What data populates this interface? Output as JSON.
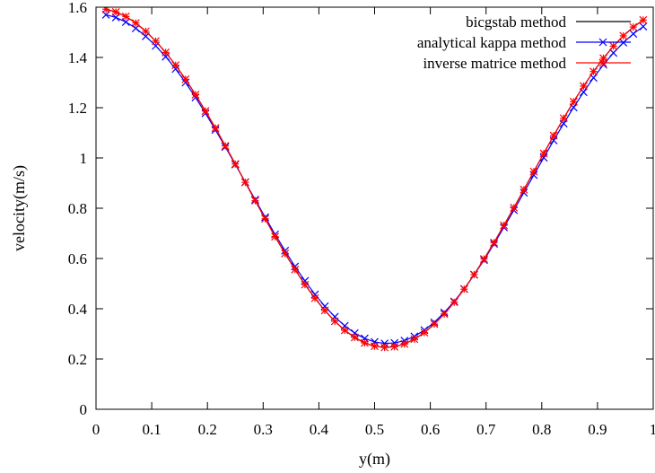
{
  "chart_data": {
    "type": "line",
    "title": "",
    "xlabel": "y(m)",
    "ylabel": "velocity(m/s)",
    "xlim": [
      0,
      1
    ],
    "ylim": [
      0,
      1.6
    ],
    "xticks": [
      "0",
      "0.1",
      "0.2",
      "0.3",
      "0.4",
      "0.5",
      "0.6",
      "0.7",
      "0.8",
      "0.9",
      "1"
    ],
    "yticks": [
      "0",
      "0.2",
      "0.4",
      "0.6",
      "0.8",
      "1",
      "1.2",
      "1.4",
      "1.6"
    ],
    "grid": false,
    "legend_position": "top-right",
    "x": [
      0.0179,
      0.0357,
      0.0536,
      0.0714,
      0.0893,
      0.1071,
      0.125,
      0.1429,
      0.1607,
      0.1786,
      0.1964,
      0.2143,
      0.2321,
      0.25,
      0.2679,
      0.2857,
      0.3036,
      0.3214,
      0.3393,
      0.3571,
      0.375,
      0.3929,
      0.4107,
      0.4286,
      0.4464,
      0.4643,
      0.4821,
      0.5,
      0.5179,
      0.5357,
      0.5536,
      0.5714,
      0.5893,
      0.6071,
      0.625,
      0.6429,
      0.6607,
      0.6786,
      0.6964,
      0.7143,
      0.7321,
      0.75,
      0.7679,
      0.7857,
      0.8036,
      0.8214,
      0.8393,
      0.8571,
      0.875,
      0.8929,
      0.9107,
      0.9286,
      0.9464,
      0.9643,
      0.9821
    ],
    "series": [
      {
        "name": "bicgstab method",
        "color": "#000000",
        "marker": "none",
        "values": [
          1.592,
          1.581,
          1.563,
          1.537,
          1.504,
          1.465,
          1.42,
          1.369,
          1.313,
          1.252,
          1.187,
          1.119,
          1.048,
          0.976,
          0.903,
          0.83,
          0.758,
          0.687,
          0.62,
          0.556,
          0.496,
          0.442,
          0.393,
          0.35,
          0.314,
          0.286,
          0.264,
          0.251,
          0.246,
          0.249,
          0.26,
          0.279,
          0.305,
          0.339,
          0.379,
          0.426,
          0.478,
          0.536,
          0.598,
          0.663,
          0.732,
          0.802,
          0.874,
          0.946,
          1.018,
          1.089,
          1.158,
          1.224,
          1.286,
          1.344,
          1.397,
          1.445,
          1.486,
          1.521,
          1.549
        ]
      },
      {
        "name": "analytical kappa method",
        "color": "#0000ff",
        "marker": "x",
        "values": [
          1.57,
          1.559,
          1.541,
          1.516,
          1.484,
          1.446,
          1.403,
          1.354,
          1.3,
          1.241,
          1.178,
          1.112,
          1.044,
          0.974,
          0.904,
          0.834,
          0.764,
          0.696,
          0.631,
          0.568,
          0.511,
          0.457,
          0.41,
          0.368,
          0.332,
          0.303,
          0.282,
          0.268,
          0.262,
          0.264,
          0.273,
          0.29,
          0.315,
          0.346,
          0.385,
          0.429,
          0.479,
          0.535,
          0.594,
          0.658,
          0.724,
          0.792,
          0.862,
          0.932,
          1.001,
          1.07,
          1.137,
          1.201,
          1.262,
          1.319,
          1.371,
          1.418,
          1.459,
          1.494,
          1.523
        ]
      },
      {
        "name": "inverse matrice method",
        "color": "#ff0000",
        "marker": "*",
        "values": [
          1.592,
          1.581,
          1.563,
          1.537,
          1.504,
          1.465,
          1.42,
          1.369,
          1.313,
          1.252,
          1.187,
          1.119,
          1.048,
          0.976,
          0.903,
          0.83,
          0.758,
          0.687,
          0.62,
          0.556,
          0.496,
          0.442,
          0.393,
          0.35,
          0.314,
          0.286,
          0.264,
          0.251,
          0.246,
          0.249,
          0.26,
          0.279,
          0.305,
          0.339,
          0.379,
          0.426,
          0.478,
          0.536,
          0.598,
          0.663,
          0.732,
          0.802,
          0.874,
          0.946,
          1.018,
          1.089,
          1.158,
          1.224,
          1.286,
          1.344,
          1.397,
          1.445,
          1.486,
          1.521,
          1.549
        ]
      }
    ]
  }
}
